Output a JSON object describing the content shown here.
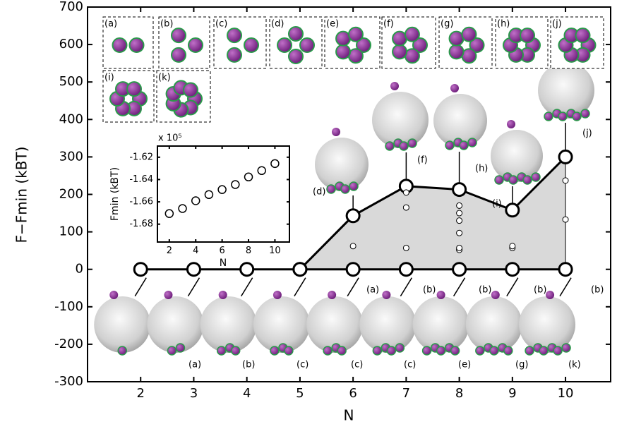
{
  "chart_data": [
    {
      "type": "line",
      "xlabel": "N",
      "ylabel": "F−Fmin (kBT)",
      "x": [
        2,
        3,
        4,
        5,
        6,
        7,
        8,
        9,
        10
      ],
      "xlim": [
        1,
        10.85
      ],
      "xticks": [
        2,
        3,
        4,
        5,
        6,
        7,
        8,
        9,
        10
      ],
      "ylim": [
        -300,
        700
      ],
      "yticks": [
        -300,
        -200,
        -100,
        0,
        100,
        200,
        300,
        400,
        500,
        600,
        700
      ],
      "series": [
        {
          "color": "#000000",
          "values": [
            0,
            0,
            0,
            0,
            0,
            0,
            0,
            0,
            0
          ]
        },
        {
          "color": "#000000",
          "values": [
            null,
            null,
            null,
            0,
            143,
            222,
            213,
            158,
            300
          ],
          "fill": "#d9d9d9"
        }
      ],
      "points": {
        "x": [
          6,
          7,
          7,
          7,
          8,
          8,
          8,
          8,
          8,
          8,
          9,
          9,
          10,
          10
        ],
        "y": [
          62,
          57,
          165,
          205,
          52,
          57,
          97,
          130,
          150,
          170,
          57,
          62,
          133,
          237
        ]
      },
      "annotations": [
        "(a)",
        "(b)",
        "(c)",
        "(c)",
        "(c)",
        "(e)",
        "(g)",
        "(k)",
        "(a)",
        "(b)",
        "(b)",
        "(b)",
        "(b)",
        "(d)",
        "(f)",
        "(h)",
        "(i)",
        "(j)"
      ],
      "panel_labels": [
        "(a)",
        "(b)",
        "(c)",
        "(d)",
        "(e)",
        "(f)",
        "(g)",
        "(h)",
        "(j)",
        "(i)",
        "(k)"
      ]
    },
    {
      "type": "scatter",
      "xlabel": "N",
      "ylabel": "Fmin (kBT)",
      "multiplier": "x 10⁵",
      "x": [
        2,
        3,
        4,
        5,
        6,
        7,
        8,
        9,
        10
      ],
      "values": [
        -1.6705,
        -1.666,
        -1.659,
        -1.6535,
        -1.649,
        -1.6445,
        -1.6377,
        -1.632,
        -1.6257
      ],
      "xlim": [
        1.1,
        11.1
      ],
      "xticks": [
        2,
        4,
        6,
        8,
        10
      ],
      "ylim": [
        -1.696,
        -1.61
      ],
      "yticks": [
        -1.68,
        -1.66,
        -1.64,
        -1.62
      ]
    }
  ]
}
